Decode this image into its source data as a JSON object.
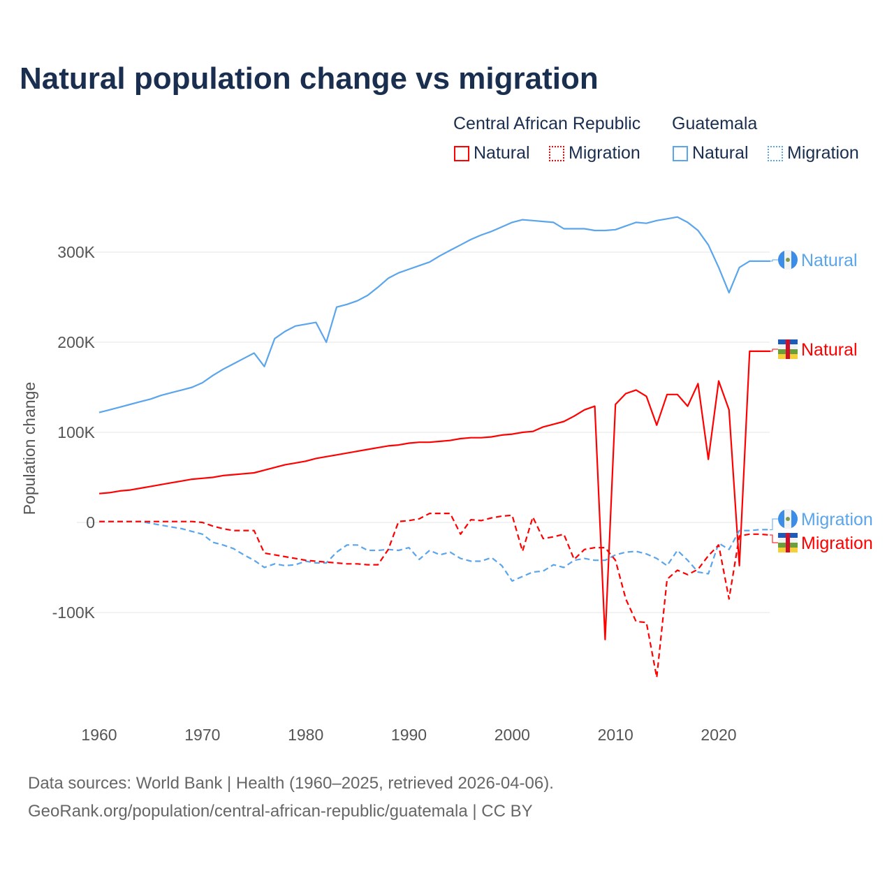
{
  "title": "Natural population change vs migration",
  "legend": {
    "groups": [
      {
        "country": "Central African Republic",
        "items": [
          "Natural",
          "Migration"
        ],
        "color": "#ff0000"
      },
      {
        "country": "Guatemala",
        "items": [
          "Natural",
          "Migration"
        ],
        "color": "#5aa5eb"
      }
    ]
  },
  "source": {
    "line1": "Data sources: World Bank | Health (1960–2025, retrieved 2026-04-06).",
    "line2": "GeoRank.org/population/central-african-republic/guatemala | CC BY"
  },
  "chart_data": {
    "type": "line",
    "title": "Natural population change vs migration",
    "xlabel": "",
    "ylabel": "Population change",
    "xlim": [
      1960,
      2025
    ],
    "ylim": [
      -200000,
      350000
    ],
    "x_ticks": [
      "1960",
      "1970",
      "1980",
      "1990",
      "2000",
      "2010",
      "2020"
    ],
    "y_ticks": [
      {
        "v": 300000,
        "label": "300K"
      },
      {
        "v": 200000,
        "label": "200K"
      },
      {
        "v": 100000,
        "label": "100K"
      },
      {
        "v": 0,
        "label": "0"
      },
      {
        "v": -100000,
        "label": "-100K"
      }
    ],
    "x_start": 1960,
    "series": [
      {
        "name": "Guatemala Natural",
        "end_label": "Natural",
        "color": "#5aa5eb",
        "dash": false,
        "values": [
          122,
          125,
          128,
          131,
          134,
          137,
          141,
          144,
          147,
          150,
          155,
          163,
          170,
          176,
          182,
          188,
          173,
          204,
          212,
          218,
          220,
          222,
          200,
          239,
          242,
          246,
          252,
          261,
          271,
          277,
          281,
          285,
          289,
          296,
          302,
          308,
          314,
          319,
          323,
          328,
          333,
          336,
          335,
          334,
          333,
          326,
          326,
          326,
          324,
          324,
          325,
          329,
          333,
          332,
          335,
          337,
          339,
          333,
          324,
          308,
          283,
          255,
          283,
          290,
          290,
          290
        ]
      },
      {
        "name": "Central African Republic Natural",
        "end_label": "Natural",
        "color": "#ff0000",
        "dash": false,
        "values": [
          32,
          33,
          35,
          36,
          38,
          40,
          42,
          44,
          46,
          48,
          49,
          50,
          52,
          53,
          54,
          55,
          58,
          61,
          64,
          66,
          68,
          71,
          73,
          75,
          77,
          79,
          81,
          83,
          85,
          86,
          88,
          89,
          89,
          90,
          91,
          93,
          94,
          94,
          95,
          97,
          98,
          100,
          101,
          106,
          109,
          112,
          118,
          125,
          129,
          -130,
          131,
          143,
          147,
          140,
          108,
          142,
          142,
          129,
          154,
          70,
          157,
          125,
          -48,
          190,
          190,
          190
        ]
      },
      {
        "name": "Guatemala Migration",
        "end_label": "Migration",
        "color": "#5aa5eb",
        "dash": true,
        "values": [
          1,
          1,
          1,
          1,
          1,
          -1,
          -3,
          -5,
          -7,
          -10,
          -13,
          -22,
          -25,
          -29,
          -36,
          -42,
          -50,
          -46,
          -48,
          -47,
          -43,
          -45,
          -45,
          -33,
          -25,
          -25,
          -31,
          -31,
          -30,
          -31,
          -28,
          -41,
          -31,
          -36,
          -33,
          -40,
          -43,
          -43,
          -39,
          -48,
          -65,
          -60,
          -55,
          -54,
          -47,
          -50,
          -42,
          -40,
          -42,
          -42,
          -36,
          -33,
          -32,
          -35,
          -40,
          -48,
          -31,
          -42,
          -55,
          -57,
          -23,
          -30,
          -9,
          -9,
          -8,
          -8
        ]
      },
      {
        "name": "Central African Republic Migration",
        "end_label": "Migration",
        "color": "#ff0000",
        "dash": true,
        "values": [
          1,
          1,
          1,
          1,
          1,
          1,
          1,
          1,
          1,
          1,
          0,
          -4,
          -7,
          -9,
          -9,
          -9,
          -34,
          -36,
          -38,
          -40,
          -42,
          -43,
          -44,
          -45,
          -46,
          -46,
          -47,
          -47,
          -30,
          1,
          2,
          4,
          10,
          10,
          10,
          -13,
          3,
          2,
          5,
          7,
          8,
          -32,
          6,
          -18,
          -16,
          -13,
          -41,
          -30,
          -28,
          -28,
          -42,
          -85,
          -110,
          -111,
          -172,
          -63,
          -53,
          -58,
          -52,
          -37,
          -25,
          -85,
          -15,
          -13,
          -13,
          -14
        ]
      }
    ],
    "value_unit": "thousands"
  }
}
